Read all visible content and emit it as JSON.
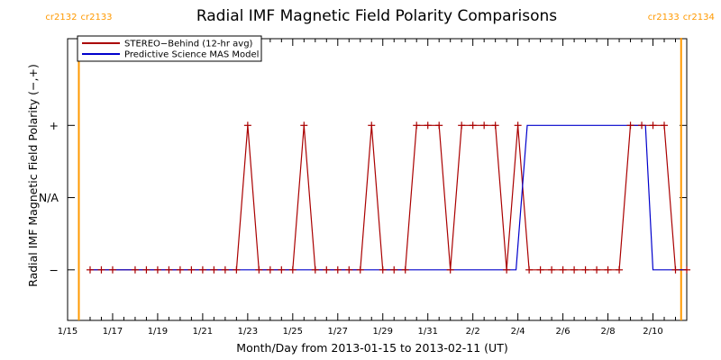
{
  "chart_data": {
    "type": "line",
    "title": "Radial IMF Magnetic Field Polarity Comparisons",
    "xlabel": "Month/Day from 2013-01-15 to 2013-02-11 (UT)",
    "ylabel": "Radial IMF Magnetic Field Polarity (−,+)",
    "x_unit": "days",
    "xlim": [
      "2013-01-15 00:00",
      "2013-02-11 12:00"
    ],
    "ylim": [
      -1.7,
      2.2
    ],
    "x_ticks": [
      {
        "x": "2013-01-15",
        "label": "1/15"
      },
      {
        "x": "2013-01-17",
        "label": "1/17"
      },
      {
        "x": "2013-01-19",
        "label": "1/19"
      },
      {
        "x": "2013-01-21",
        "label": "1/21"
      },
      {
        "x": "2013-01-23",
        "label": "1/23"
      },
      {
        "x": "2013-01-25",
        "label": "1/25"
      },
      {
        "x": "2013-01-27",
        "label": "1/27"
      },
      {
        "x": "2013-01-29",
        "label": "1/29"
      },
      {
        "x": "2013-01-31",
        "label": "1/31"
      },
      {
        "x": "2013-02-02",
        "label": "2/2"
      },
      {
        "x": "2013-02-04",
        "label": "2/4"
      },
      {
        "x": "2013-02-06",
        "label": "2/6"
      },
      {
        "x": "2013-02-08",
        "label": "2/8"
      },
      {
        "x": "2013-02-10",
        "label": "2/10"
      }
    ],
    "y_ticks": [
      {
        "y": 1,
        "label": "+"
      },
      {
        "y": 0,
        "label": "N/A"
      },
      {
        "y": -1,
        "label": "−"
      }
    ],
    "carrington_markers": [
      {
        "x": "2013-01-15 12:00",
        "left_label": "cr2132",
        "right_label": "cr2133",
        "color": "#ff9900"
      },
      {
        "x": "2013-02-11 06:00",
        "left_label": "cr2133",
        "right_label": "cr2134",
        "color": "#ff9900"
      }
    ],
    "legend_position": "top-left",
    "series": [
      {
        "name": "STEREO−Behind (12-hr avg)",
        "color": "#aa0000",
        "points": [
          [
            "2013-01-16 00:00",
            -1
          ],
          [
            "2013-01-16 12:00",
            -1
          ],
          [
            "2013-01-17 00:00",
            -1
          ],
          [
            "2013-01-18 00:00",
            -1
          ],
          [
            "2013-01-18 12:00",
            -1
          ],
          [
            "2013-01-19 00:00",
            -1
          ],
          [
            "2013-01-19 12:00",
            -1
          ],
          [
            "2013-01-20 00:00",
            -1
          ],
          [
            "2013-01-20 12:00",
            -1
          ],
          [
            "2013-01-21 00:00",
            -1
          ],
          [
            "2013-01-21 12:00",
            -1
          ],
          [
            "2013-01-22 00:00",
            -1
          ],
          [
            "2013-01-22 12:00",
            -1
          ],
          [
            "2013-01-23 00:00",
            1
          ],
          [
            "2013-01-23 12:00",
            -1
          ],
          [
            "2013-01-24 00:00",
            -1
          ],
          [
            "2013-01-24 12:00",
            -1
          ],
          [
            "2013-01-25 00:00",
            -1
          ],
          [
            "2013-01-25 12:00",
            1
          ],
          [
            "2013-01-26 00:00",
            -1
          ],
          [
            "2013-01-26 12:00",
            -1
          ],
          [
            "2013-01-27 00:00",
            -1
          ],
          [
            "2013-01-27 12:00",
            -1
          ],
          [
            "2013-01-28 00:00",
            -1
          ],
          [
            "2013-01-28 12:00",
            1
          ],
          [
            "2013-01-29 00:00",
            -1
          ],
          [
            "2013-01-29 12:00",
            -1
          ],
          [
            "2013-01-30 00:00",
            -1
          ],
          [
            "2013-01-30 12:00",
            1
          ],
          [
            "2013-01-31 00:00",
            1
          ],
          [
            "2013-01-31 12:00",
            1
          ],
          [
            "2013-02-01 00:00",
            -1
          ],
          [
            "2013-02-01 12:00",
            1
          ],
          [
            "2013-02-02 00:00",
            1
          ],
          [
            "2013-02-02 12:00",
            1
          ],
          [
            "2013-02-03 00:00",
            1
          ],
          [
            "2013-02-03 12:00",
            -1
          ],
          [
            "2013-02-04 00:00",
            1
          ],
          [
            "2013-02-04 12:00",
            -1
          ],
          [
            "2013-02-05 00:00",
            -1
          ],
          [
            "2013-02-05 12:00",
            -1
          ],
          [
            "2013-02-06 00:00",
            -1
          ],
          [
            "2013-02-06 12:00",
            -1
          ],
          [
            "2013-02-07 00:00",
            -1
          ],
          [
            "2013-02-07 12:00",
            -1
          ],
          [
            "2013-02-08 00:00",
            -1
          ],
          [
            "2013-02-08 12:00",
            -1
          ],
          [
            "2013-02-09 00:00",
            1
          ],
          [
            "2013-02-09 12:00",
            1
          ],
          [
            "2013-02-10 00:00",
            1
          ],
          [
            "2013-02-10 12:00",
            1
          ],
          [
            "2013-02-11 00:00",
            -1
          ],
          [
            "2013-02-11 12:00",
            -1
          ]
        ]
      },
      {
        "name": "Predictive Science MAS Model",
        "color": "#0000cc",
        "points": [
          [
            "2013-01-16 00:00",
            -1
          ],
          [
            "2013-02-03 22:00",
            -1
          ],
          [
            "2013-02-04 10:00",
            1
          ],
          [
            "2013-02-09 16:00",
            1
          ],
          [
            "2013-02-10 00:00",
            -1
          ],
          [
            "2013-02-11 12:00",
            -1
          ]
        ]
      }
    ]
  }
}
